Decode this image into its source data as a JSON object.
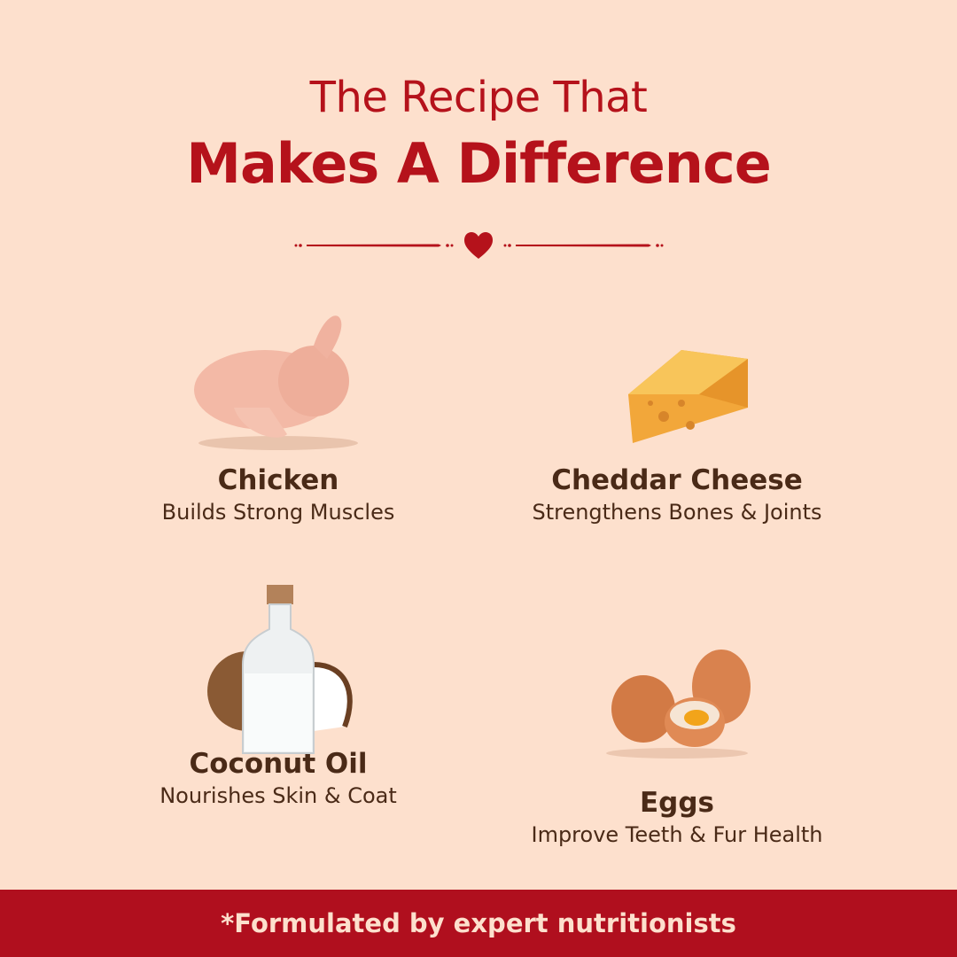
{
  "heading": {
    "line1": "The Recipe That",
    "line2": "Makes A Difference"
  },
  "colors": {
    "background": "#fde0cd",
    "accent": "#b5121b",
    "text": "#4a2a17"
  },
  "divider_icon": "heart-icon",
  "ingredients": [
    {
      "name": "Chicken",
      "benefit": "Builds Strong Muscles",
      "icon": "raw-chicken"
    },
    {
      "name": "Cheddar Cheese",
      "benefit": "Strengthens Bones & Joints",
      "icon": "cheese-wedge"
    },
    {
      "name": "Coconut Oil",
      "benefit": "Nourishes Skin & Coat",
      "icon": "coconut-oil-bottle"
    },
    {
      "name": "Eggs",
      "benefit": "Improve Teeth & Fur Health",
      "icon": "eggs"
    }
  ],
  "footer": {
    "text": "*Formulated by expert nutritionists"
  }
}
